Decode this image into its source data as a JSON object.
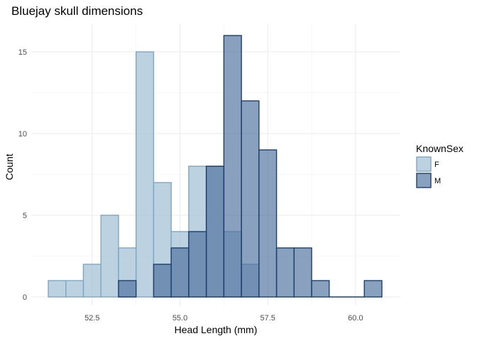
{
  "chart_data": {
    "type": "histogram",
    "title": "Bluejay skull dimensions",
    "xlabel": "Head Length (mm)",
    "ylabel": "Count",
    "xlim": [
      51.25,
      60.75
    ],
    "ylim": [
      0,
      16
    ],
    "bin_width": 0.5,
    "x_ticks": [
      52.5,
      55.0,
      57.5,
      60.0
    ],
    "x_tick_labels": [
      "52.5",
      "55.0",
      "57.5",
      "60.0"
    ],
    "y_ticks": [
      0,
      5,
      10,
      15
    ],
    "y_tick_labels": [
      "0",
      "5",
      "10",
      "15"
    ],
    "grid": true,
    "legend": {
      "title": "KnownSex",
      "position": "right"
    },
    "series": [
      {
        "name": "F",
        "fill": "#a6c3d6",
        "stroke": "#7fa6c2",
        "bins": [
          {
            "x0": 51.25,
            "count": 1
          },
          {
            "x0": 51.75,
            "count": 1
          },
          {
            "x0": 52.25,
            "count": 2
          },
          {
            "x0": 52.75,
            "count": 5
          },
          {
            "x0": 53.25,
            "count": 3
          },
          {
            "x0": 53.75,
            "count": 15
          },
          {
            "x0": 54.25,
            "count": 7
          },
          {
            "x0": 54.75,
            "count": 4
          },
          {
            "x0": 55.25,
            "count": 8
          },
          {
            "x0": 55.75,
            "count": 8
          },
          {
            "x0": 56.25,
            "count": 4
          },
          {
            "x0": 56.75,
            "count": 2
          }
        ]
      },
      {
        "name": "M",
        "fill": "#4a6d9c",
        "stroke": "#1d3f6e",
        "bins": [
          {
            "x0": 53.25,
            "count": 1
          },
          {
            "x0": 54.25,
            "count": 2
          },
          {
            "x0": 54.75,
            "count": 3
          },
          {
            "x0": 55.25,
            "count": 4
          },
          {
            "x0": 55.75,
            "count": 8
          },
          {
            "x0": 56.25,
            "count": 16
          },
          {
            "x0": 56.75,
            "count": 12
          },
          {
            "x0": 57.25,
            "count": 9
          },
          {
            "x0": 57.75,
            "count": 3
          },
          {
            "x0": 58.25,
            "count": 3
          },
          {
            "x0": 58.75,
            "count": 1
          },
          {
            "x0": 59.25,
            "count": 0
          },
          {
            "x0": 59.75,
            "count": 0
          },
          {
            "x0": 60.25,
            "count": 1
          }
        ]
      }
    ]
  }
}
